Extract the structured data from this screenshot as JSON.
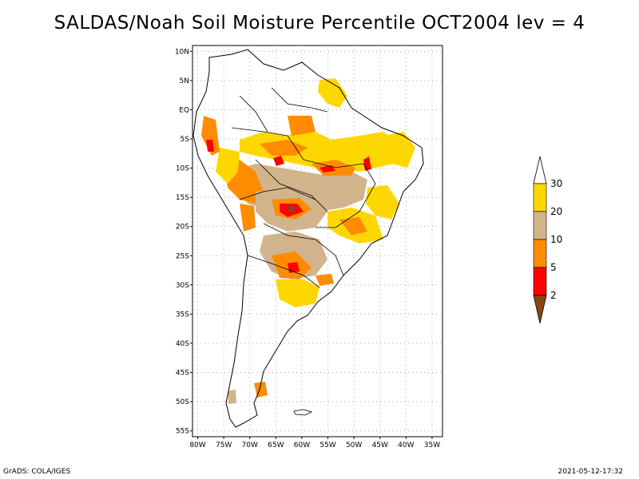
{
  "title": "SALDAS/Noah Soil Moisture Percentile OCT2004 lev = 4",
  "map": {
    "lat_labels": [
      "10N",
      "5N",
      "EQ",
      "5S",
      "10S",
      "15S",
      "20S",
      "25S",
      "30S",
      "35S",
      "40S",
      "45S",
      "50S",
      "55S"
    ],
    "lat_values": [
      10,
      5,
      0,
      -5,
      -10,
      -15,
      -20,
      -25,
      -30,
      -35,
      -40,
      -45,
      -50,
      -55
    ],
    "lon_labels": [
      "80W",
      "75W",
      "70W",
      "65W",
      "60W",
      "55W",
      "50W",
      "45W",
      "40W",
      "35W"
    ],
    "lon_values": [
      -80,
      -75,
      -70,
      -65,
      -60,
      -55,
      -50,
      -45,
      -40,
      -35
    ],
    "lon_range": [
      -81,
      -33
    ],
    "lat_range": [
      -56,
      11
    ],
    "grid": true,
    "region": "South America",
    "coastline_color": "#000000",
    "grid_color": "#aaaaaa"
  },
  "colorbar": {
    "levels": [
      "2",
      "5",
      "10",
      "20",
      "30"
    ],
    "colors": {
      "below_2": "#8b4513",
      "2_5": "#ff0000",
      "5_10": "#ff8c00",
      "10_20": "#d2b48c",
      "20_30": "#ffd700",
      "above_30": "#ffffff"
    }
  },
  "footer": {
    "left": "GrADS: COLA/IGES",
    "right": "2021-05-12-17:32"
  }
}
